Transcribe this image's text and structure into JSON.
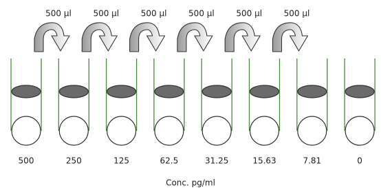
{
  "transfers": [
    "500 µl",
    "500 µl",
    "500 µl",
    "500 µl",
    "500 µl",
    "500 µl"
  ],
  "concentrations": [
    "500",
    "250",
    "125",
    "62.5",
    "31.25",
    "15.63",
    "7.81",
    "0"
  ],
  "axis_label": "Conc. pg/ml"
}
